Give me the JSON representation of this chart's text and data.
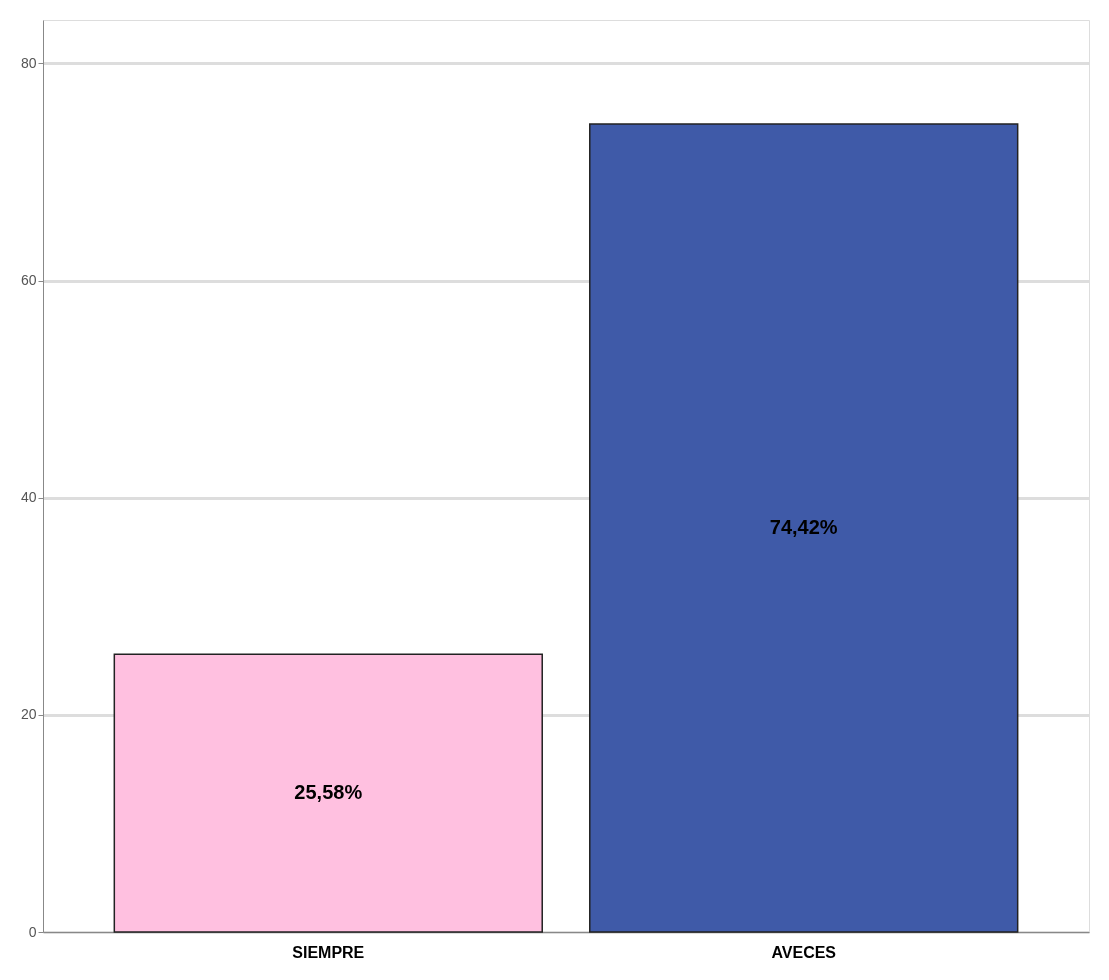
{
  "chart_data": {
    "type": "bar",
    "categories": [
      "SIEMPRE",
      "AVECES"
    ],
    "values": [
      25.58,
      74.42
    ],
    "colors": [
      "#ffc0e0",
      "#3f5aa8"
    ],
    "value_labels": [
      "25,58%",
      "74,42%"
    ],
    "ylim": [
      0,
      84
    ],
    "yticks": [
      0,
      20,
      40,
      60,
      80
    ],
    "grid": "y"
  }
}
